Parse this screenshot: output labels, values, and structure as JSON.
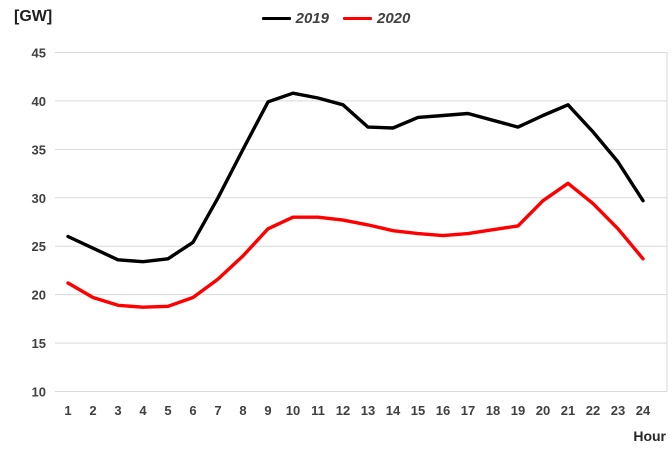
{
  "chart": {
    "ylabel": "[GW]",
    "xlabel": "Hour"
  },
  "chart_data": {
    "type": "line",
    "title": "",
    "x": [
      1,
      2,
      3,
      4,
      5,
      6,
      7,
      8,
      9,
      10,
      11,
      12,
      13,
      14,
      15,
      16,
      17,
      18,
      19,
      20,
      21,
      22,
      23,
      24
    ],
    "series": [
      {
        "name": "2019",
        "color": "#000000",
        "values": [
          26.0,
          24.8,
          23.6,
          23.4,
          23.7,
          25.4,
          30.0,
          35.0,
          39.9,
          40.8,
          40.3,
          39.6,
          37.3,
          37.2,
          38.3,
          38.5,
          38.7,
          38.0,
          37.3,
          38.5,
          39.6,
          36.8,
          33.7,
          29.7
        ]
      },
      {
        "name": "2020",
        "color": "#FF0000",
        "values": [
          21.2,
          19.7,
          18.9,
          18.7,
          18.8,
          19.7,
          21.6,
          24.0,
          26.8,
          28.0,
          28.0,
          27.7,
          27.2,
          26.6,
          26.3,
          26.1,
          26.3,
          26.7,
          27.1,
          29.7,
          31.5,
          29.4,
          26.8,
          23.7
        ]
      }
    ],
    "xlabel": "Hour",
    "ylabel": "[GW]",
    "ylim": [
      10,
      45
    ],
    "yticks": [
      10,
      15,
      20,
      25,
      30,
      35,
      40,
      45
    ],
    "grid": "horizontal-only",
    "gridline_color": "#D9D9D9",
    "tick_label_color": "#404040",
    "legend_position": "top-center"
  }
}
